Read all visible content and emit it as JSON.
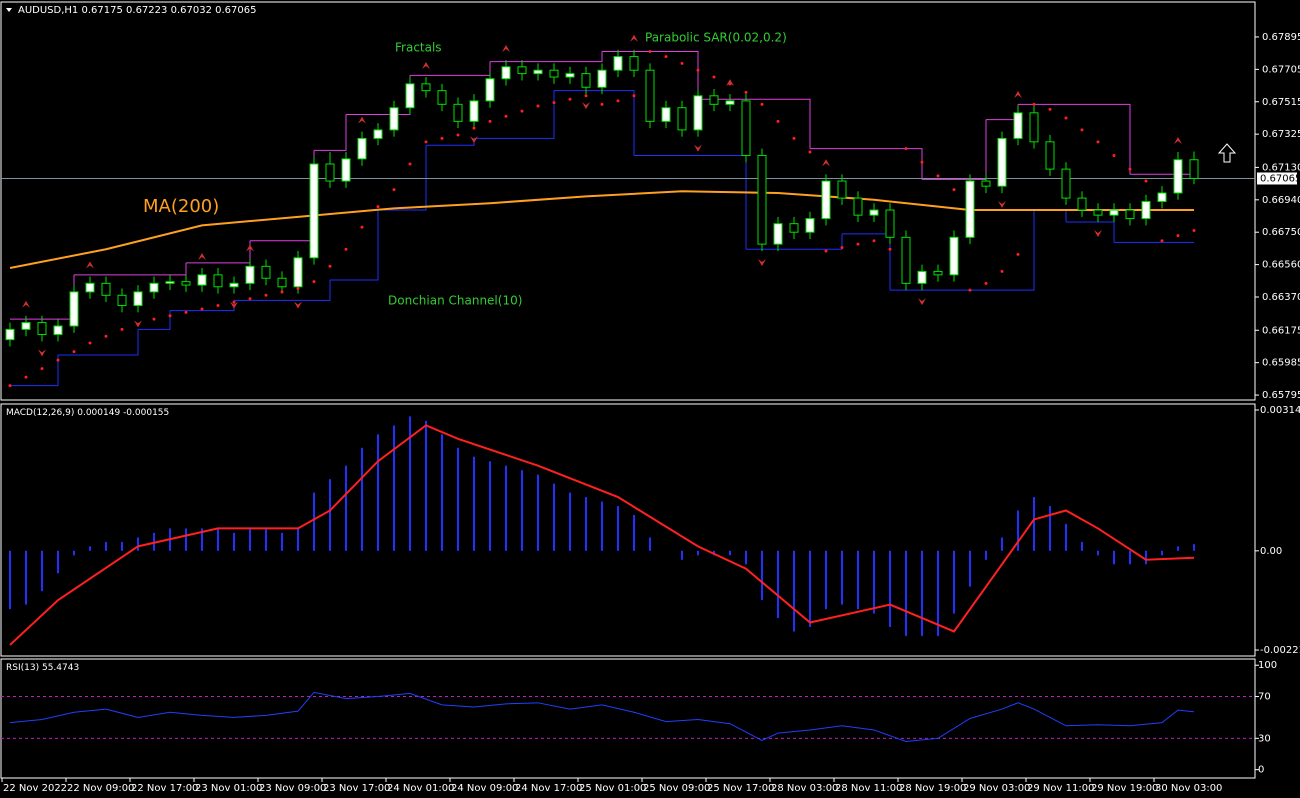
{
  "chart_data": [
    {
      "type": "candlestick",
      "symbol": "AUDUSD,H1",
      "open": [
        0.6612,
        0.6618,
        0.6622,
        0.6615,
        0.662,
        0.664,
        0.6645,
        0.6638,
        0.6632,
        0.664,
        0.6645,
        0.6646,
        0.6644,
        0.665,
        0.6643,
        0.6645,
        0.6655,
        0.6648,
        0.6643,
        0.666,
        0.6715,
        0.6705,
        0.6718,
        0.673,
        0.6735,
        0.6748,
        0.6762,
        0.6758,
        0.675,
        0.674,
        0.6752,
        0.6765,
        0.6772,
        0.6768,
        0.677,
        0.6766,
        0.6768,
        0.676,
        0.677,
        0.6778,
        0.677,
        0.674,
        0.6748,
        0.6735,
        0.6755,
        0.675,
        0.6752,
        0.672,
        0.6668,
        0.668,
        0.6675,
        0.6683,
        0.6705,
        0.6695,
        0.6685,
        0.6688,
        0.6672,
        0.6645,
        0.6652,
        0.665,
        0.6672,
        0.6705,
        0.6702,
        0.673,
        0.6745,
        0.6728,
        0.6712,
        0.6695,
        0.6688,
        0.6685,
        0.6688,
        0.6683,
        0.6693,
        0.6698,
        0.67175
      ],
      "high": [
        0.6622,
        0.6626,
        0.6626,
        0.6624,
        0.6644,
        0.6649,
        0.6649,
        0.6642,
        0.6644,
        0.6649,
        0.665,
        0.665,
        0.6654,
        0.6654,
        0.6649,
        0.6659,
        0.6659,
        0.6652,
        0.6664,
        0.6719,
        0.6722,
        0.6722,
        0.6734,
        0.6739,
        0.6752,
        0.6766,
        0.6766,
        0.6762,
        0.6754,
        0.6756,
        0.6769,
        0.6776,
        0.6776,
        0.6774,
        0.6774,
        0.6772,
        0.6772,
        0.6774,
        0.6782,
        0.6782,
        0.6774,
        0.6752,
        0.6752,
        0.6759,
        0.6759,
        0.6756,
        0.6756,
        0.6724,
        0.6684,
        0.6684,
        0.6687,
        0.6709,
        0.6709,
        0.6699,
        0.6692,
        0.6692,
        0.6676,
        0.6656,
        0.6656,
        0.6676,
        0.6709,
        0.6709,
        0.6734,
        0.6749,
        0.6749,
        0.6732,
        0.6716,
        0.6699,
        0.6692,
        0.6692,
        0.6692,
        0.6697,
        0.6702,
        0.6722,
        0.67223
      ],
      "low": [
        0.6608,
        0.6614,
        0.6611,
        0.6611,
        0.6616,
        0.6636,
        0.6634,
        0.6628,
        0.6628,
        0.6636,
        0.6641,
        0.664,
        0.664,
        0.6639,
        0.6639,
        0.6641,
        0.6644,
        0.6639,
        0.6639,
        0.6656,
        0.6701,
        0.6701,
        0.6714,
        0.6726,
        0.6731,
        0.6744,
        0.6754,
        0.6746,
        0.6736,
        0.6736,
        0.6748,
        0.6761,
        0.6764,
        0.6764,
        0.6762,
        0.6762,
        0.6756,
        0.6756,
        0.6766,
        0.6766,
        0.6736,
        0.6736,
        0.6731,
        0.6731,
        0.6746,
        0.6746,
        0.6716,
        0.6664,
        0.6664,
        0.6671,
        0.6671,
        0.6679,
        0.6691,
        0.6681,
        0.6681,
        0.6668,
        0.6641,
        0.6641,
        0.6646,
        0.6646,
        0.6668,
        0.6698,
        0.6698,
        0.6726,
        0.6724,
        0.6708,
        0.6691,
        0.6684,
        0.6681,
        0.6681,
        0.6679,
        0.6679,
        0.6689,
        0.6694,
        0.67032
      ],
      "close": [
        0.6618,
        0.6622,
        0.6615,
        0.662,
        0.664,
        0.6645,
        0.6638,
        0.6632,
        0.664,
        0.6645,
        0.6646,
        0.6644,
        0.665,
        0.6643,
        0.6645,
        0.6655,
        0.6648,
        0.6643,
        0.666,
        0.6715,
        0.6705,
        0.6718,
        0.673,
        0.6735,
        0.6748,
        0.6762,
        0.6758,
        0.675,
        0.674,
        0.6752,
        0.6765,
        0.6772,
        0.6768,
        0.677,
        0.6766,
        0.6768,
        0.676,
        0.677,
        0.6778,
        0.677,
        0.674,
        0.6748,
        0.6735,
        0.6755,
        0.675,
        0.6752,
        0.672,
        0.6668,
        0.668,
        0.6675,
        0.6683,
        0.6705,
        0.6695,
        0.6685,
        0.6688,
        0.6672,
        0.6645,
        0.6652,
        0.665,
        0.6672,
        0.6705,
        0.6702,
        0.673,
        0.6745,
        0.6728,
        0.6712,
        0.6695,
        0.6688,
        0.6685,
        0.6688,
        0.6683,
        0.6693,
        0.6698,
        0.67175,
        0.67065
      ],
      "up_color": "#ffffff",
      "down_color": "#000000",
      "wick_color": "#00e000",
      "ylim": [
        0.65766,
        0.681
      ],
      "yticks": [
        0.67895,
        0.67705,
        0.67515,
        0.67325,
        {
          "value": 0.6713,
          "label": "0.67130"
        },
        {
          "value": 0.6694,
          "label": "0.66940"
        },
        {
          "value": 0.6675,
          "label": "0.66750"
        },
        {
          "value": 0.6656,
          "label": "0.66560"
        },
        {
          "value": 0.6637,
          "label": "0.66370"
        },
        0.66175,
        0.65985,
        0.65795
      ],
      "xticks": [
        {
          "value": 0,
          "label": "22 Nov 2022"
        },
        {
          "value": 4,
          "label": "22 Nov 09:00"
        },
        {
          "value": 8,
          "label": "22 Nov 17:00"
        },
        {
          "value": 12,
          "label": "23 Nov 01:00"
        },
        {
          "value": 16,
          "label": "23 Nov 09:00"
        },
        {
          "value": 20,
          "label": "23 Nov 17:00"
        },
        {
          "value": 24,
          "label": "24 Nov 01:00"
        },
        {
          "value": 28,
          "label": "24 Nov 09:00"
        },
        {
          "value": 32,
          "label": "24 Nov 17:00"
        },
        {
          "value": 36,
          "label": "25 Nov 01:00"
        },
        {
          "value": 40,
          "label": "25 Nov 09:00"
        },
        {
          "value": 44,
          "label": "25 Nov 17:00"
        },
        {
          "value": 48,
          "label": "28 Nov 03:00"
        },
        {
          "value": 52,
          "label": "28 Nov 11:00"
        },
        {
          "value": 56,
          "label": "28 Nov 19:00"
        },
        {
          "value": 60,
          "label": "29 Nov 03:00"
        },
        {
          "value": 64,
          "label": "29 Nov 11:00"
        },
        {
          "value": 68,
          "label": "29 Nov 19:00"
        },
        {
          "value": 72,
          "label": "30 Nov 03:00"
        }
      ],
      "ma": {
        "name": "MA(200)",
        "color": "#ffa020",
        "x": [
          0,
          6,
          12,
          18,
          24,
          30,
          36,
          42,
          48,
          54,
          60,
          66,
          72,
          74
        ],
        "values": [
          0.6654,
          0.6665,
          0.6679,
          0.6684,
          0.6689,
          0.6692,
          0.6696,
          0.6699,
          0.6698,
          0.6694,
          0.6688,
          0.6688,
          0.6688,
          0.6688
        ]
      },
      "sar": {
        "name": "Parabolic SAR(0.02,0.2)",
        "color": "#ff2020",
        "values": [
          0.6585,
          0.659,
          0.6595,
          0.66,
          0.6605,
          0.661,
          0.6614,
          0.6618,
          0.6621,
          0.6624,
          0.6626,
          0.6628,
          0.663,
          0.6632,
          0.6634,
          0.6636,
          0.6638,
          0.664,
          0.6642,
          0.6646,
          0.6655,
          0.6665,
          0.6678,
          0.669,
          0.67,
          0.6715,
          0.6728,
          0.673,
          0.6732,
          0.6736,
          0.674,
          0.6743,
          0.6746,
          0.6749,
          0.6751,
          0.6753,
          0.6755,
          0.675,
          0.6752,
          0.6755,
          0.6781,
          0.6778,
          0.6774,
          0.677,
          0.6766,
          0.6762,
          0.6757,
          0.675,
          0.674,
          0.673,
          0.6722,
          0.6664,
          0.6666,
          0.6668,
          0.667,
          0.6665,
          0.6724,
          0.6716,
          0.6708,
          0.67,
          0.6641,
          0.6645,
          0.6652,
          0.6662,
          0.675,
          0.6747,
          0.6742,
          0.6735,
          0.6728,
          0.672,
          0.6712,
          0.6705,
          0.667,
          0.6673,
          0.6676
        ]
      },
      "donchian": {
        "name": "Donchian Channel(10)",
        "upper": {
          "color": "#e040e0",
          "x": [
            0,
            4,
            11,
            15,
            19,
            21,
            25,
            30,
            37,
            43,
            50,
            57,
            61,
            63,
            70,
            74
          ],
          "values": [
            0.6624,
            0.665,
            0.6657,
            0.667,
            0.6723,
            0.6744,
            0.6767,
            0.6775,
            0.6781,
            0.6753,
            0.6724,
            0.6706,
            0.6741,
            0.675,
            0.6709,
            0.6709
          ]
        },
        "lower": {
          "color": "#2030ff",
          "x": [
            0,
            3,
            8,
            10,
            14,
            20,
            23,
            26,
            29,
            34,
            39,
            46,
            52,
            55,
            64,
            66,
            69,
            74
          ],
          "values": [
            0.6585,
            0.6603,
            0.6618,
            0.6629,
            0.6635,
            0.6647,
            0.6688,
            0.6726,
            0.673,
            0.6758,
            0.672,
            0.6665,
            0.6674,
            0.6641,
            0.6688,
            0.6681,
            0.6669,
            0.6669
          ]
        }
      },
      "fractals": {
        "name": "Fractals",
        "color": "#d03030",
        "up": [
          1,
          5,
          12,
          15,
          22,
          26,
          31,
          39,
          45,
          51,
          63,
          73
        ],
        "down": [
          2,
          8,
          14,
          18,
          29,
          36,
          43,
          47,
          57,
          62,
          68
        ]
      }
    },
    {
      "type": "macd",
      "title": "MACD(12,26,9)",
      "histogram": {
        "color": "#2030ff",
        "values": [
          -0.0013,
          -0.0012,
          -0.0009,
          -0.0005,
          -0.0001,
          0.0001,
          0.0002,
          0.0002,
          0.0003,
          0.0004,
          0.0005,
          0.0005,
          0.0005,
          0.0005,
          0.0004,
          0.0005,
          0.0005,
          0.0004,
          0.0005,
          0.0013,
          0.0016,
          0.0019,
          0.0023,
          0.0026,
          0.0028,
          0.003,
          0.0029,
          0.0026,
          0.0023,
          0.0021,
          0.002,
          0.0019,
          0.0018,
          0.0017,
          0.0015,
          0.0013,
          0.0012,
          0.0011,
          0.001,
          0.0008,
          0.0003,
          0,
          -0.0002,
          -0.0001,
          -0.0001,
          -0.0001,
          -0.0003,
          -0.0011,
          -0.0015,
          -0.0018,
          -0.0017,
          -0.0013,
          -0.0012,
          -0.0013,
          -0.0014,
          -0.0017,
          -0.0019,
          -0.0019,
          -0.0019,
          -0.0014,
          -0.0008,
          -0.0002,
          0.0003,
          0.0009,
          0.0012,
          0.001,
          0.0006,
          0.0002,
          -0.0001,
          -0.0003,
          -0.0003,
          -0.0003,
          -0.0001,
          0.0001,
          0.000149
        ]
      },
      "signal": {
        "color": "#ff2020",
        "x": [
          0,
          3,
          8,
          13,
          18,
          20,
          23,
          26,
          28,
          33,
          38,
          43,
          46,
          50,
          55,
          59,
          61,
          64,
          66,
          68,
          71,
          74
        ],
        "values": [
          -0.0021,
          -0.0011,
          0.0001,
          0.0005,
          0.0005,
          0.0009,
          0.002,
          0.0028,
          0.0025,
          0.0019,
          0.0012,
          0.0001,
          -0.0004,
          -0.0016,
          -0.0012,
          -0.0018,
          -0.0008,
          0.0007,
          0.0009,
          0.0005,
          -0.0002,
          -0.000155
        ]
      },
      "ylim": [
        -0.002325,
        0.003255
      ],
      "yticks": [
        0.003144,
        {
          "value": 0,
          "label": "0.00"
        },
        -0.002214
      ]
    },
    {
      "type": "rsi",
      "title": "RSI(13)",
      "color": "#2040ff",
      "level_color": "#c020c0",
      "x": [
        0,
        2,
        4,
        6,
        8,
        10,
        12,
        14,
        16,
        18,
        19,
        21,
        23,
        25,
        27,
        29,
        31,
        33,
        35,
        37,
        39,
        41,
        43,
        45,
        47,
        48,
        50,
        52,
        54,
        56,
        58,
        60,
        62,
        63,
        64,
        66,
        68,
        70,
        72,
        73,
        74
      ],
      "values": [
        45,
        48,
        55,
        58,
        50,
        55,
        52,
        50,
        52,
        56,
        74,
        68,
        70,
        73,
        62,
        60,
        63,
        64,
        58,
        62,
        55,
        46,
        48,
        44,
        28,
        35,
        38,
        42,
        38,
        27,
        30,
        49,
        58,
        64,
        58,
        42,
        43,
        42,
        45,
        57,
        55.4743
      ],
      "levels": [
        70,
        30
      ],
      "ylim": [
        -8,
        105
      ],
      "yticks": [
        100,
        70,
        30,
        0
      ]
    }
  ]
}
